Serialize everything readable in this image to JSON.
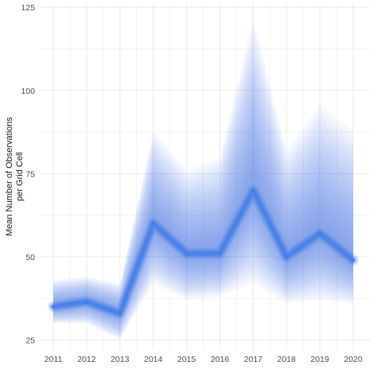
{
  "chart_data": {
    "type": "line",
    "title": "",
    "xlabel": "",
    "ylabel": [
      "Mean Number of Observations",
      "per Grid Cell"
    ],
    "x": [
      "2011",
      "2012",
      "2013",
      "2014",
      "2015",
      "2016",
      "2017",
      "2018",
      "2019",
      "2020"
    ],
    "y_ticks": [
      "25",
      "50",
      "75",
      "100",
      "125"
    ],
    "ylim": [
      22,
      126
    ],
    "grid": true,
    "style": "uncertainty fan (gradient ribbons around central line)",
    "colors": {
      "series": "#3b7ae8",
      "grid": "#ebebeb",
      "background": "#ffffff"
    },
    "series": [
      {
        "values": [
          35,
          36.5,
          33,
          60,
          51,
          51,
          70,
          50,
          57,
          49
        ],
        "upper": [
          43,
          44,
          42,
          88,
          76,
          80,
          122,
          82,
          96,
          88
        ],
        "lower": [
          30,
          30,
          25,
          42,
          37,
          38,
          42,
          36,
          37,
          36
        ]
      }
    ]
  }
}
